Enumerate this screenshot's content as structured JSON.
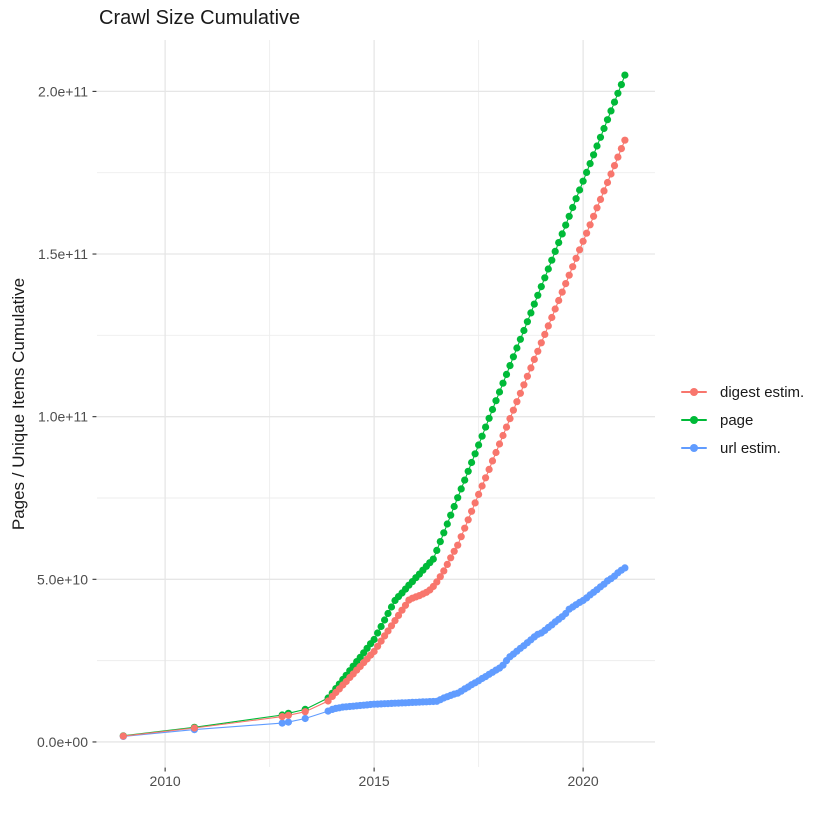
{
  "title": "Crawl Size Cumulative",
  "style": {
    "background": "#FFFFFF",
    "grid_major_color": "#E6E6E6",
    "grid_minor_color": "#EDEDED",
    "tick_mark_color": "#333333",
    "tick_label_color": "#4D4D4D",
    "title_color": "#1A1A1A"
  },
  "chart_data": {
    "type": "scatter",
    "title": "Crawl Size Cumulative",
    "xlabel": "",
    "ylabel": "Pages / Unique Items Cumulative",
    "grid": true,
    "legend_position": "right",
    "y_unit_note": "values in billions (1e9) of pages / unique items",
    "xlim": [
      2008.37,
      2021.72
    ],
    "ylim_billions": [
      -7.7,
      215.8
    ],
    "x_ticks": [
      {
        "value": 2010,
        "label": "2010"
      },
      {
        "value": 2015,
        "label": "2015"
      },
      {
        "value": 2020,
        "label": "2020"
      }
    ],
    "x_minor_ticks": [
      2012.5,
      2017.5
    ],
    "y_ticks": [
      {
        "value": 0,
        "label": "0.0e+00"
      },
      {
        "value": 50,
        "label": "5.0e+10"
      },
      {
        "value": 100,
        "label": "1.0e+11"
      },
      {
        "value": 150,
        "label": "1.5e+11"
      },
      {
        "value": 200,
        "label": "2.0e+11"
      }
    ],
    "y_minor_ticks": [
      25,
      75,
      125,
      175
    ],
    "series": [
      {
        "name": "digest estim.",
        "color": "#F8766D",
        "points": [
          [
            2009.0,
            1.8
          ],
          [
            2010.7,
            4.3
          ],
          [
            2012.8,
            7.8
          ],
          [
            2012.95,
            8.2
          ],
          [
            2013.35,
            9.3
          ],
          [
            2013.9,
            12.6
          ],
          [
            2014.0,
            14.0
          ],
          [
            2014.083,
            15.2
          ],
          [
            2014.167,
            16.3
          ],
          [
            2014.25,
            17.5
          ],
          [
            2014.333,
            18.6
          ],
          [
            2014.417,
            19.8
          ],
          [
            2014.5,
            20.9
          ],
          [
            2014.583,
            22.1
          ],
          [
            2014.667,
            23.2
          ],
          [
            2014.75,
            24.4
          ],
          [
            2014.833,
            25.5
          ],
          [
            2014.917,
            26.7
          ],
          [
            2015.0,
            27.8
          ],
          [
            2015.083,
            29.4
          ],
          [
            2015.167,
            31.0
          ],
          [
            2015.25,
            32.6
          ],
          [
            2015.333,
            34.1
          ],
          [
            2015.417,
            35.7
          ],
          [
            2015.5,
            37.3
          ],
          [
            2015.583,
            38.9
          ],
          [
            2015.667,
            40.5
          ],
          [
            2015.75,
            42.0
          ],
          [
            2015.833,
            43.6
          ],
          [
            2015.917,
            44.2
          ],
          [
            2016.0,
            44.6
          ],
          [
            2016.083,
            45.0
          ],
          [
            2016.167,
            45.5
          ],
          [
            2016.25,
            46.0
          ],
          [
            2016.333,
            46.7
          ],
          [
            2016.417,
            47.8
          ],
          [
            2016.5,
            49.2
          ],
          [
            2016.583,
            50.8
          ],
          [
            2016.667,
            52.6
          ],
          [
            2016.75,
            54.6
          ],
          [
            2016.833,
            56.6
          ],
          [
            2016.917,
            58.6
          ],
          [
            2017.0,
            60.5
          ],
          [
            2017.083,
            63.1
          ],
          [
            2017.167,
            65.7
          ],
          [
            2017.25,
            68.3
          ],
          [
            2017.333,
            70.9
          ],
          [
            2017.417,
            73.5
          ],
          [
            2017.5,
            76.1
          ],
          [
            2017.583,
            78.7
          ],
          [
            2017.667,
            81.2
          ],
          [
            2017.75,
            83.8
          ],
          [
            2017.833,
            86.4
          ],
          [
            2017.917,
            89.0
          ],
          [
            2018.0,
            91.6
          ],
          [
            2018.083,
            94.2
          ],
          [
            2018.167,
            96.8
          ],
          [
            2018.25,
            99.4
          ],
          [
            2018.333,
            102.0
          ],
          [
            2018.417,
            104.6
          ],
          [
            2018.5,
            107.2
          ],
          [
            2018.583,
            109.8
          ],
          [
            2018.667,
            112.4
          ],
          [
            2018.75,
            115.0
          ],
          [
            2018.833,
            117.6
          ],
          [
            2018.917,
            120.1
          ],
          [
            2019.0,
            122.7
          ],
          [
            2019.083,
            125.3
          ],
          [
            2019.167,
            127.9
          ],
          [
            2019.25,
            130.5
          ],
          [
            2019.333,
            133.1
          ],
          [
            2019.417,
            135.7
          ],
          [
            2019.5,
            138.3
          ],
          [
            2019.583,
            140.9
          ],
          [
            2019.667,
            143.5
          ],
          [
            2019.75,
            146.1
          ],
          [
            2019.833,
            148.7
          ],
          [
            2019.917,
            151.3
          ],
          [
            2020.0,
            153.9
          ],
          [
            2020.083,
            156.4
          ],
          [
            2020.167,
            159.0
          ],
          [
            2020.25,
            161.6
          ],
          [
            2020.333,
            164.2
          ],
          [
            2020.417,
            166.8
          ],
          [
            2020.5,
            169.4
          ],
          [
            2020.583,
            172.0
          ],
          [
            2020.667,
            174.6
          ],
          [
            2020.75,
            177.2
          ],
          [
            2020.833,
            179.8
          ],
          [
            2020.917,
            182.4
          ],
          [
            2021.0,
            185.0
          ]
        ]
      },
      {
        "name": "page",
        "color": "#00BA38",
        "points": [
          [
            2009.0,
            1.9
          ],
          [
            2010.7,
            4.5
          ],
          [
            2012.8,
            8.3
          ],
          [
            2012.95,
            8.8
          ],
          [
            2013.35,
            10.0
          ],
          [
            2013.9,
            13.5
          ],
          [
            2014.0,
            15.0
          ],
          [
            2014.083,
            16.4
          ],
          [
            2014.167,
            17.8
          ],
          [
            2014.25,
            19.2
          ],
          [
            2014.333,
            20.5
          ],
          [
            2014.417,
            21.9
          ],
          [
            2014.5,
            23.3
          ],
          [
            2014.583,
            24.7
          ],
          [
            2014.667,
            26.0
          ],
          [
            2014.75,
            27.4
          ],
          [
            2014.833,
            28.8
          ],
          [
            2014.917,
            30.2
          ],
          [
            2015.0,
            31.5
          ],
          [
            2015.083,
            33.5
          ],
          [
            2015.167,
            35.5
          ],
          [
            2015.25,
            37.5
          ],
          [
            2015.333,
            39.5
          ],
          [
            2015.417,
            41.5
          ],
          [
            2015.5,
            43.5
          ],
          [
            2015.583,
            44.7
          ],
          [
            2015.667,
            45.8
          ],
          [
            2015.75,
            47.0
          ],
          [
            2015.833,
            48.2
          ],
          [
            2015.917,
            49.3
          ],
          [
            2016.0,
            50.5
          ],
          [
            2016.083,
            51.6
          ],
          [
            2016.167,
            52.8
          ],
          [
            2016.25,
            54.0
          ],
          [
            2016.333,
            55.1
          ],
          [
            2016.417,
            56.2
          ],
          [
            2016.5,
            58.9
          ],
          [
            2016.583,
            61.6
          ],
          [
            2016.667,
            64.3
          ],
          [
            2016.75,
            67.0
          ],
          [
            2016.833,
            69.7
          ],
          [
            2016.917,
            72.4
          ],
          [
            2017.0,
            75.1
          ],
          [
            2017.083,
            77.8
          ],
          [
            2017.167,
            80.5
          ],
          [
            2017.25,
            83.2
          ],
          [
            2017.333,
            85.9
          ],
          [
            2017.417,
            88.6
          ],
          [
            2017.5,
            91.3
          ],
          [
            2017.583,
            94.0
          ],
          [
            2017.667,
            96.8
          ],
          [
            2017.75,
            99.5
          ],
          [
            2017.833,
            102.2
          ],
          [
            2017.917,
            104.9
          ],
          [
            2018.0,
            107.6
          ],
          [
            2018.083,
            110.3
          ],
          [
            2018.167,
            113.0
          ],
          [
            2018.25,
            115.7
          ],
          [
            2018.333,
            118.4
          ],
          [
            2018.417,
            121.1
          ],
          [
            2018.5,
            123.8
          ],
          [
            2018.583,
            126.5
          ],
          [
            2018.667,
            129.2
          ],
          [
            2018.75,
            131.9
          ],
          [
            2018.833,
            134.6
          ],
          [
            2018.917,
            137.3
          ],
          [
            2019.0,
            140.0
          ],
          [
            2019.083,
            142.7
          ],
          [
            2019.167,
            145.4
          ],
          [
            2019.25,
            148.1
          ],
          [
            2019.333,
            150.8
          ],
          [
            2019.417,
            153.5
          ],
          [
            2019.5,
            156.2
          ],
          [
            2019.583,
            158.9
          ],
          [
            2019.667,
            161.6
          ],
          [
            2019.75,
            164.3
          ],
          [
            2019.833,
            167.0
          ],
          [
            2019.917,
            169.7
          ],
          [
            2020.0,
            172.4
          ],
          [
            2020.083,
            175.1
          ],
          [
            2020.167,
            177.8
          ],
          [
            2020.25,
            180.5
          ],
          [
            2020.333,
            183.2
          ],
          [
            2020.417,
            185.9
          ],
          [
            2020.5,
            188.6
          ],
          [
            2020.583,
            191.3
          ],
          [
            2020.667,
            194.0
          ],
          [
            2020.75,
            196.7
          ],
          [
            2020.833,
            199.4
          ],
          [
            2020.917,
            202.1
          ],
          [
            2021.0,
            205.0
          ]
        ]
      },
      {
        "name": "url estim.",
        "color": "#619CFF",
        "points": [
          [
            2009.0,
            1.7
          ],
          [
            2010.7,
            3.8
          ],
          [
            2012.8,
            5.8
          ],
          [
            2012.95,
            6.1
          ],
          [
            2013.35,
            7.2
          ],
          [
            2013.9,
            9.5
          ],
          [
            2014.0,
            10.0
          ],
          [
            2014.083,
            10.3
          ],
          [
            2014.167,
            10.5
          ],
          [
            2014.25,
            10.7
          ],
          [
            2014.333,
            10.8
          ],
          [
            2014.417,
            10.9
          ],
          [
            2014.5,
            11.0
          ],
          [
            2014.583,
            11.1
          ],
          [
            2014.667,
            11.2
          ],
          [
            2014.75,
            11.3
          ],
          [
            2014.833,
            11.4
          ],
          [
            2014.917,
            11.5
          ],
          [
            2015.0,
            11.6
          ],
          [
            2015.083,
            11.65
          ],
          [
            2015.167,
            11.7
          ],
          [
            2015.25,
            11.75
          ],
          [
            2015.333,
            11.8
          ],
          [
            2015.417,
            11.85
          ],
          [
            2015.5,
            11.9
          ],
          [
            2015.583,
            11.95
          ],
          [
            2015.667,
            12.0
          ],
          [
            2015.75,
            12.05
          ],
          [
            2015.833,
            12.1
          ],
          [
            2015.917,
            12.15
          ],
          [
            2016.0,
            12.2
          ],
          [
            2016.083,
            12.25
          ],
          [
            2016.167,
            12.3
          ],
          [
            2016.25,
            12.35
          ],
          [
            2016.333,
            12.4
          ],
          [
            2016.417,
            12.45
          ],
          [
            2016.5,
            12.5
          ],
          [
            2016.583,
            13.0
          ],
          [
            2016.667,
            13.5
          ],
          [
            2016.75,
            13.9
          ],
          [
            2016.833,
            14.3
          ],
          [
            2016.917,
            14.7
          ],
          [
            2017.0,
            15.0
          ],
          [
            2017.083,
            15.6
          ],
          [
            2017.167,
            16.3
          ],
          [
            2017.25,
            16.9
          ],
          [
            2017.333,
            17.6
          ],
          [
            2017.417,
            18.2
          ],
          [
            2017.5,
            18.8
          ],
          [
            2017.583,
            19.5
          ],
          [
            2017.667,
            20.1
          ],
          [
            2017.75,
            20.8
          ],
          [
            2017.833,
            21.4
          ],
          [
            2017.917,
            22.1
          ],
          [
            2018.0,
            22.7
          ],
          [
            2018.083,
            23.6
          ],
          [
            2018.167,
            25.0
          ],
          [
            2018.25,
            26.2
          ],
          [
            2018.333,
            27.0
          ],
          [
            2018.417,
            27.9
          ],
          [
            2018.5,
            28.8
          ],
          [
            2018.583,
            29.6
          ],
          [
            2018.667,
            30.5
          ],
          [
            2018.75,
            31.4
          ],
          [
            2018.833,
            32.3
          ],
          [
            2018.917,
            33.1
          ],
          [
            2019.0,
            33.5
          ],
          [
            2019.083,
            34.3
          ],
          [
            2019.167,
            35.2
          ],
          [
            2019.25,
            36.0
          ],
          [
            2019.333,
            36.9
          ],
          [
            2019.417,
            37.7
          ],
          [
            2019.5,
            38.5
          ],
          [
            2019.583,
            39.5
          ],
          [
            2019.667,
            40.8
          ],
          [
            2019.75,
            41.5
          ],
          [
            2019.833,
            42.2
          ],
          [
            2019.917,
            42.9
          ],
          [
            2020.0,
            43.5
          ],
          [
            2020.083,
            44.3
          ],
          [
            2020.167,
            45.2
          ],
          [
            2020.25,
            46.0
          ],
          [
            2020.333,
            46.8
          ],
          [
            2020.417,
            47.7
          ],
          [
            2020.5,
            48.5
          ],
          [
            2020.583,
            49.5
          ],
          [
            2020.667,
            50.2
          ],
          [
            2020.75,
            51.0
          ],
          [
            2020.833,
            52.0
          ],
          [
            2020.917,
            52.8
          ],
          [
            2021.0,
            53.5
          ]
        ]
      }
    ]
  },
  "legend": {
    "items": [
      "digest estim.",
      "page",
      "url estim."
    ]
  }
}
